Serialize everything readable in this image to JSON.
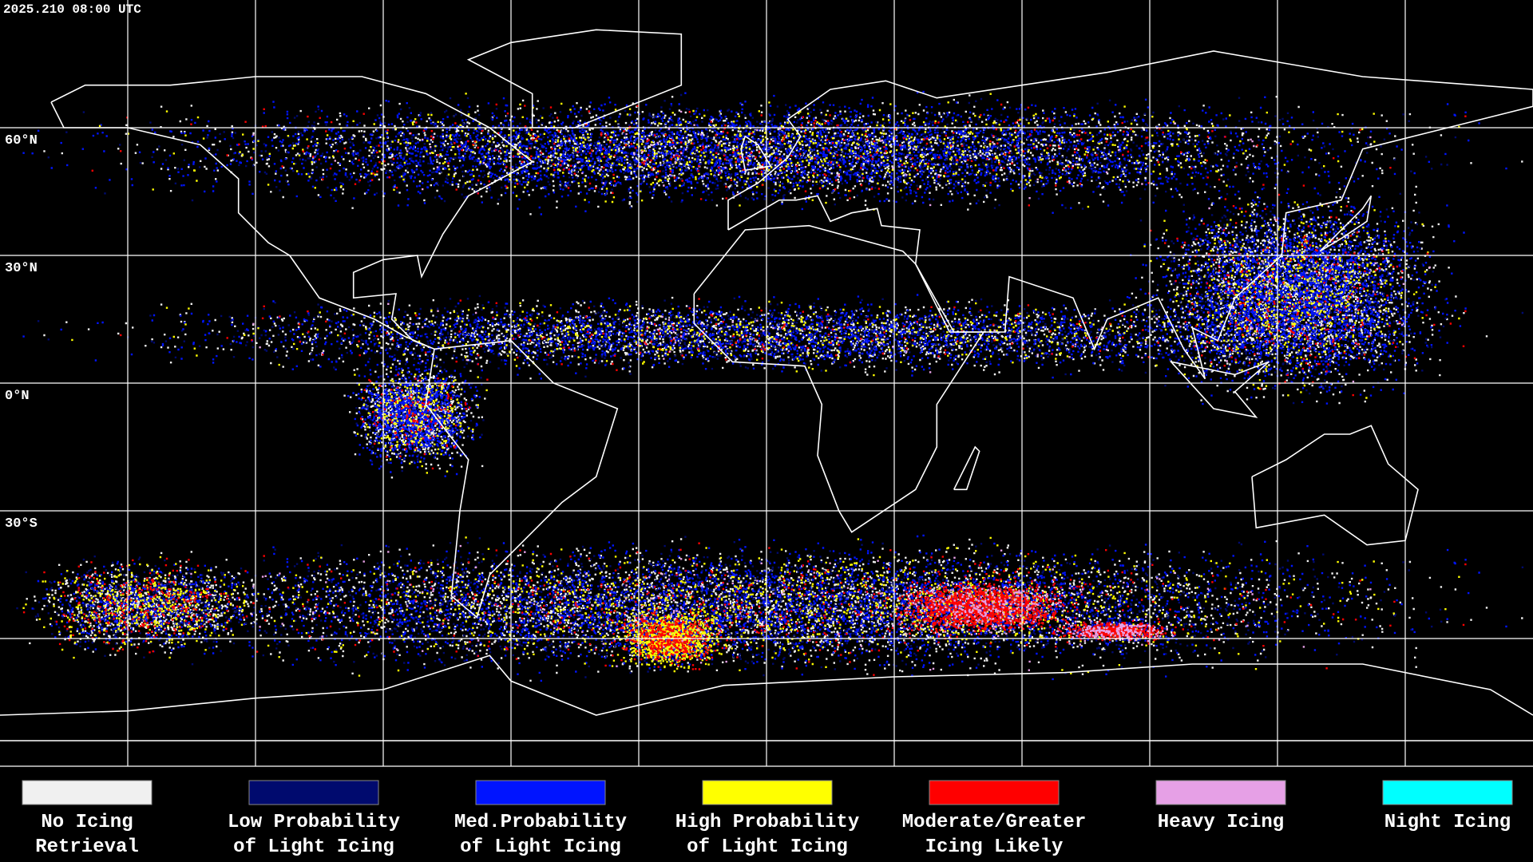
{
  "header": {
    "timestamp": "2025.210 08:00 UTC"
  },
  "latitude_labels": [
    "60°N",
    "30°N",
    "0°N",
    "30°S"
  ],
  "legend": [
    {
      "label": [
        "No Icing",
        "Retrieval"
      ],
      "color": "#f0f0f0"
    },
    {
      "label": [
        "Low Probability",
        "of Light Icing"
      ],
      "color": "#000a6e"
    },
    {
      "label": [
        "Med.Probability",
        "of Light Icing"
      ],
      "color": "#0014ff"
    },
    {
      "label": [
        "High Probability",
        "of Light Icing"
      ],
      "color": "#ffff00"
    },
    {
      "label": [
        "Moderate/Greater",
        "Icing Likely"
      ],
      "color": "#ff0000"
    },
    {
      "label": [
        "Heavy Icing"
      ],
      "color": "#e6a0e6"
    },
    {
      "label": [
        "Night Icing"
      ],
      "color": "#00ffff"
    }
  ]
}
